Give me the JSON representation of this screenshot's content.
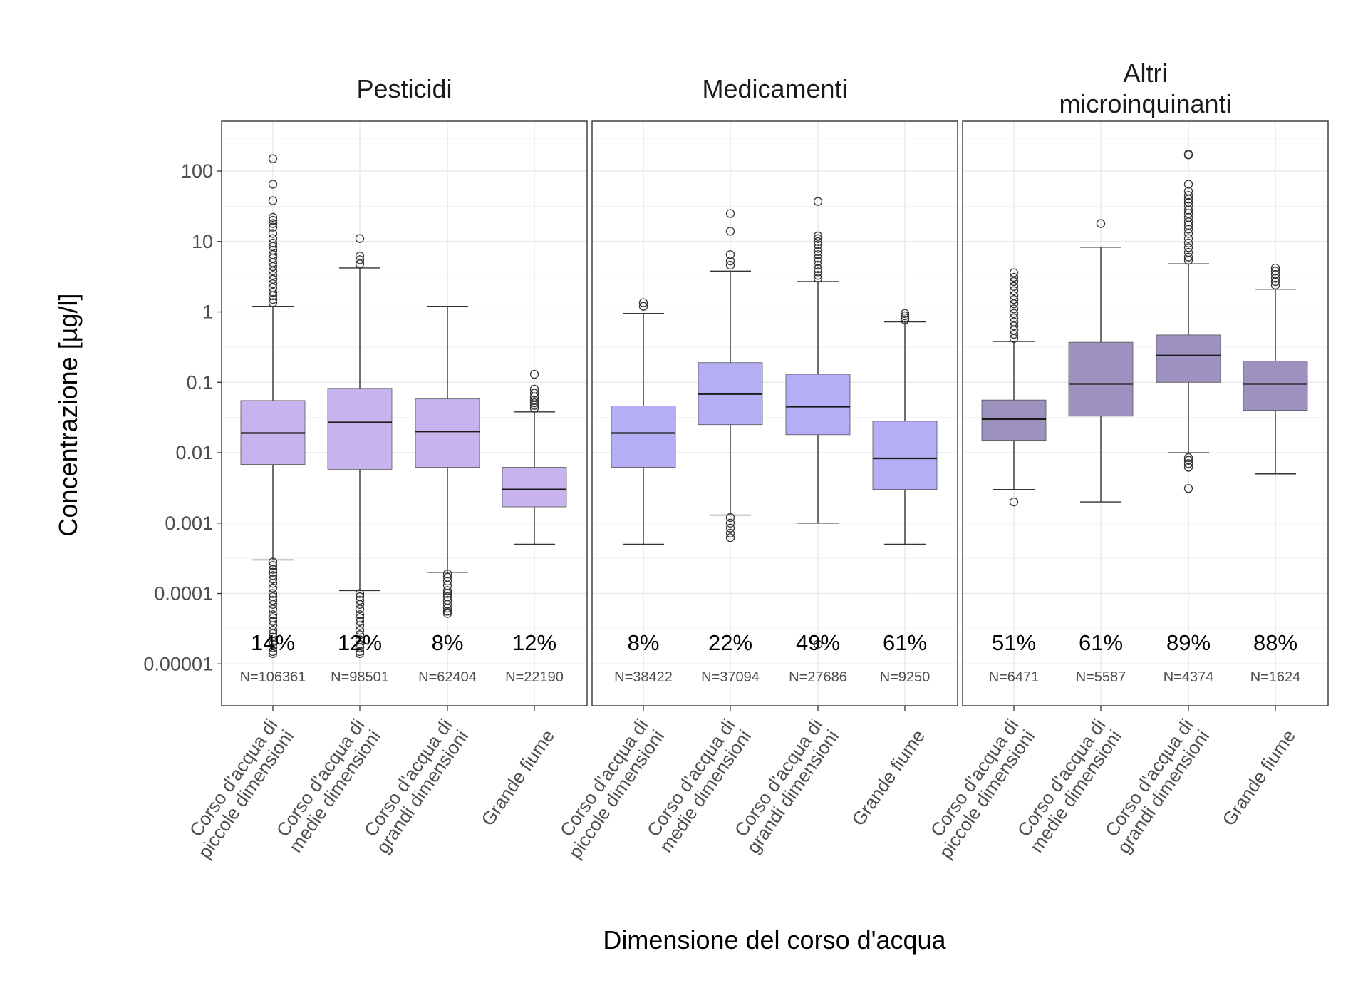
{
  "chart_data": {
    "type": "boxplot",
    "ylabel": "Concentrazione [µg/l]",
    "xlabel": "Dimensione del corso d'acqua",
    "yscale": "log10",
    "ylim": [
      5e-06,
      500
    ],
    "y_ticks": [
      1e-05,
      0.0001,
      0.001,
      0.01,
      0.1,
      1,
      10,
      100
    ],
    "y_tick_labels": [
      "0.00001",
      "0.0001",
      "0.001",
      "0.01",
      "0.1",
      "1",
      "10",
      "100"
    ],
    "categories": [
      [
        "Corso d'acqua di",
        "piccole dimensioni"
      ],
      [
        "Corso d'acqua di",
        "medie dimensioni"
      ],
      [
        "Corso d'acqua di",
        "grandi dimensioni"
      ],
      [
        "Grande fiume"
      ]
    ],
    "panels": [
      {
        "title": [
          "Pesticidi"
        ],
        "color": "#c8b3ee",
        "boxes": [
          {
            "q1": 0.0068,
            "median": 0.019,
            "q3": 0.055,
            "lower": 0.0003,
            "upper": 1.2,
            "pct": "14%",
            "n": "N=106361",
            "outliers": [
              150,
              65,
              38,
              22,
              20,
              18,
              16,
              13,
              11,
              9.5,
              8.5,
              7.5,
              6.5,
              5.8,
              5,
              4.4,
              3.8,
              3.3,
              2.9,
              2.5,
              2.2,
              1.9,
              1.7,
              1.5,
              1.35,
              0.00028,
              0.00025,
              0.00022,
              0.0002,
              0.00018,
              0.00016,
              0.00014,
              0.00012,
              0.0001,
              9e-05,
              8e-05,
              7e-05,
              6e-05,
              5e-05,
              4.5e-05,
              4e-05,
              3.5e-05,
              3e-05,
              2.7e-05,
              2.4e-05,
              2.1e-05,
              1.9e-05,
              1.7e-05,
              1.5e-05,
              1.4e-05
            ]
          },
          {
            "q1": 0.0058,
            "median": 0.027,
            "q3": 0.082,
            "lower": 0.00011,
            "upper": 4.2,
            "pct": "12%",
            "n": "N=98501",
            "outliers": [
              11,
              6.2,
              5.5,
              4.8,
              0.0001,
              9e-05,
              8e-05,
              7e-05,
              6e-05,
              5e-05,
              4.5e-05,
              4e-05,
              3.5e-05,
              3e-05,
              2.6e-05,
              2.2e-05,
              1.9e-05,
              1.7e-05,
              1.5e-05,
              1.4e-05
            ]
          },
          {
            "q1": 0.0062,
            "median": 0.02,
            "q3": 0.058,
            "lower": 0.0002,
            "upper": 1.2,
            "pct": "8%",
            "n": "N=62404",
            "outliers": [
              0.00019,
              0.00017,
              0.00015,
              0.00013,
              0.00011,
              0.0001,
              9e-05,
              8e-05,
              7e-05,
              6.2e-05,
              5.6e-05,
              5.2e-05
            ]
          },
          {
            "q1": 0.0017,
            "median": 0.003,
            "q3": 0.0062,
            "lower": 0.0005,
            "upper": 0.038,
            "pct": "12%",
            "n": "N=22190",
            "outliers": [
              0.13,
              0.08,
              0.07,
              0.062,
              0.056,
              0.051,
              0.047,
              0.043
            ]
          }
        ]
      },
      {
        "title": [
          "Medicamenti"
        ],
        "color": "#b3aef6",
        "boxes": [
          {
            "q1": 0.0062,
            "median": 0.019,
            "q3": 0.046,
            "lower": 0.0005,
            "upper": 0.95,
            "pct": "8%",
            "n": "N=38422",
            "outliers": [
              1.35,
              1.2
            ]
          },
          {
            "q1": 0.025,
            "median": 0.068,
            "q3": 0.19,
            "lower": 0.0013,
            "upper": 3.8,
            "pct": "22%",
            "n": "N=37094",
            "outliers": [
              25,
              14,
              6.5,
              5.3,
              4.6,
              0.0012,
              0.001,
              0.00085,
              0.00072,
              0.00062
            ]
          },
          {
            "q1": 0.018,
            "median": 0.045,
            "q3": 0.13,
            "lower": 0.001,
            "upper": 2.7,
            "pct": "49%",
            "n": "N=27686",
            "outliers": [
              37,
              12,
              11,
              10,
              9,
              8,
              7.2,
              6.5,
              5.8,
              5.2,
              4.6,
              4.1,
              3.7,
              3.3,
              3,
              1.9e-05
            ]
          },
          {
            "q1": 0.003,
            "median": 0.0083,
            "q3": 0.028,
            "lower": 0.0005,
            "upper": 0.72,
            "pct": "61%",
            "n": "N=9250",
            "outliers": [
              0.95,
              0.88,
              0.82,
              0.77
            ]
          }
        ]
      },
      {
        "title": [
          "Altri",
          "microinquinanti"
        ],
        "color": "#9d92bf",
        "boxes": [
          {
            "q1": 0.015,
            "median": 0.03,
            "q3": 0.056,
            "lower": 0.003,
            "upper": 0.38,
            "pct": "51%",
            "n": "N=6471",
            "outliers": [
              3.6,
              3.1,
              2.7,
              2.3,
              2,
              1.7,
              1.5,
              1.3,
              1.1,
              0.95,
              0.82,
              0.72,
              0.63,
              0.55,
              0.48,
              0.42,
              0.002
            ]
          },
          {
            "q1": 0.033,
            "median": 0.095,
            "q3": 0.37,
            "lower": 0.002,
            "upper": 8.3,
            "pct": "61%",
            "n": "N=5587",
            "outliers": [
              18
            ]
          },
          {
            "q1": 0.1,
            "median": 0.24,
            "q3": 0.47,
            "lower": 0.01,
            "upper": 4.8,
            "pct": "89%",
            "n": "N=4374",
            "outliers": [
              175,
              170,
              65,
              52,
              45,
              40,
              36,
              32,
              28,
              25,
              22,
              19,
              17,
              15,
              13,
              11,
              9.5,
              8.2,
              7,
              6,
              5.4,
              0.0085,
              0.0078,
              0.007,
              0.0062,
              0.0031
            ]
          },
          {
            "q1": 0.04,
            "median": 0.095,
            "q3": 0.2,
            "lower": 0.005,
            "upper": 2.1,
            "pct": "88%",
            "n": "N=1624",
            "outliers": [
              4.2,
              3.8,
              3.4,
              3,
              2.7,
              2.4
            ]
          }
        ]
      }
    ]
  }
}
